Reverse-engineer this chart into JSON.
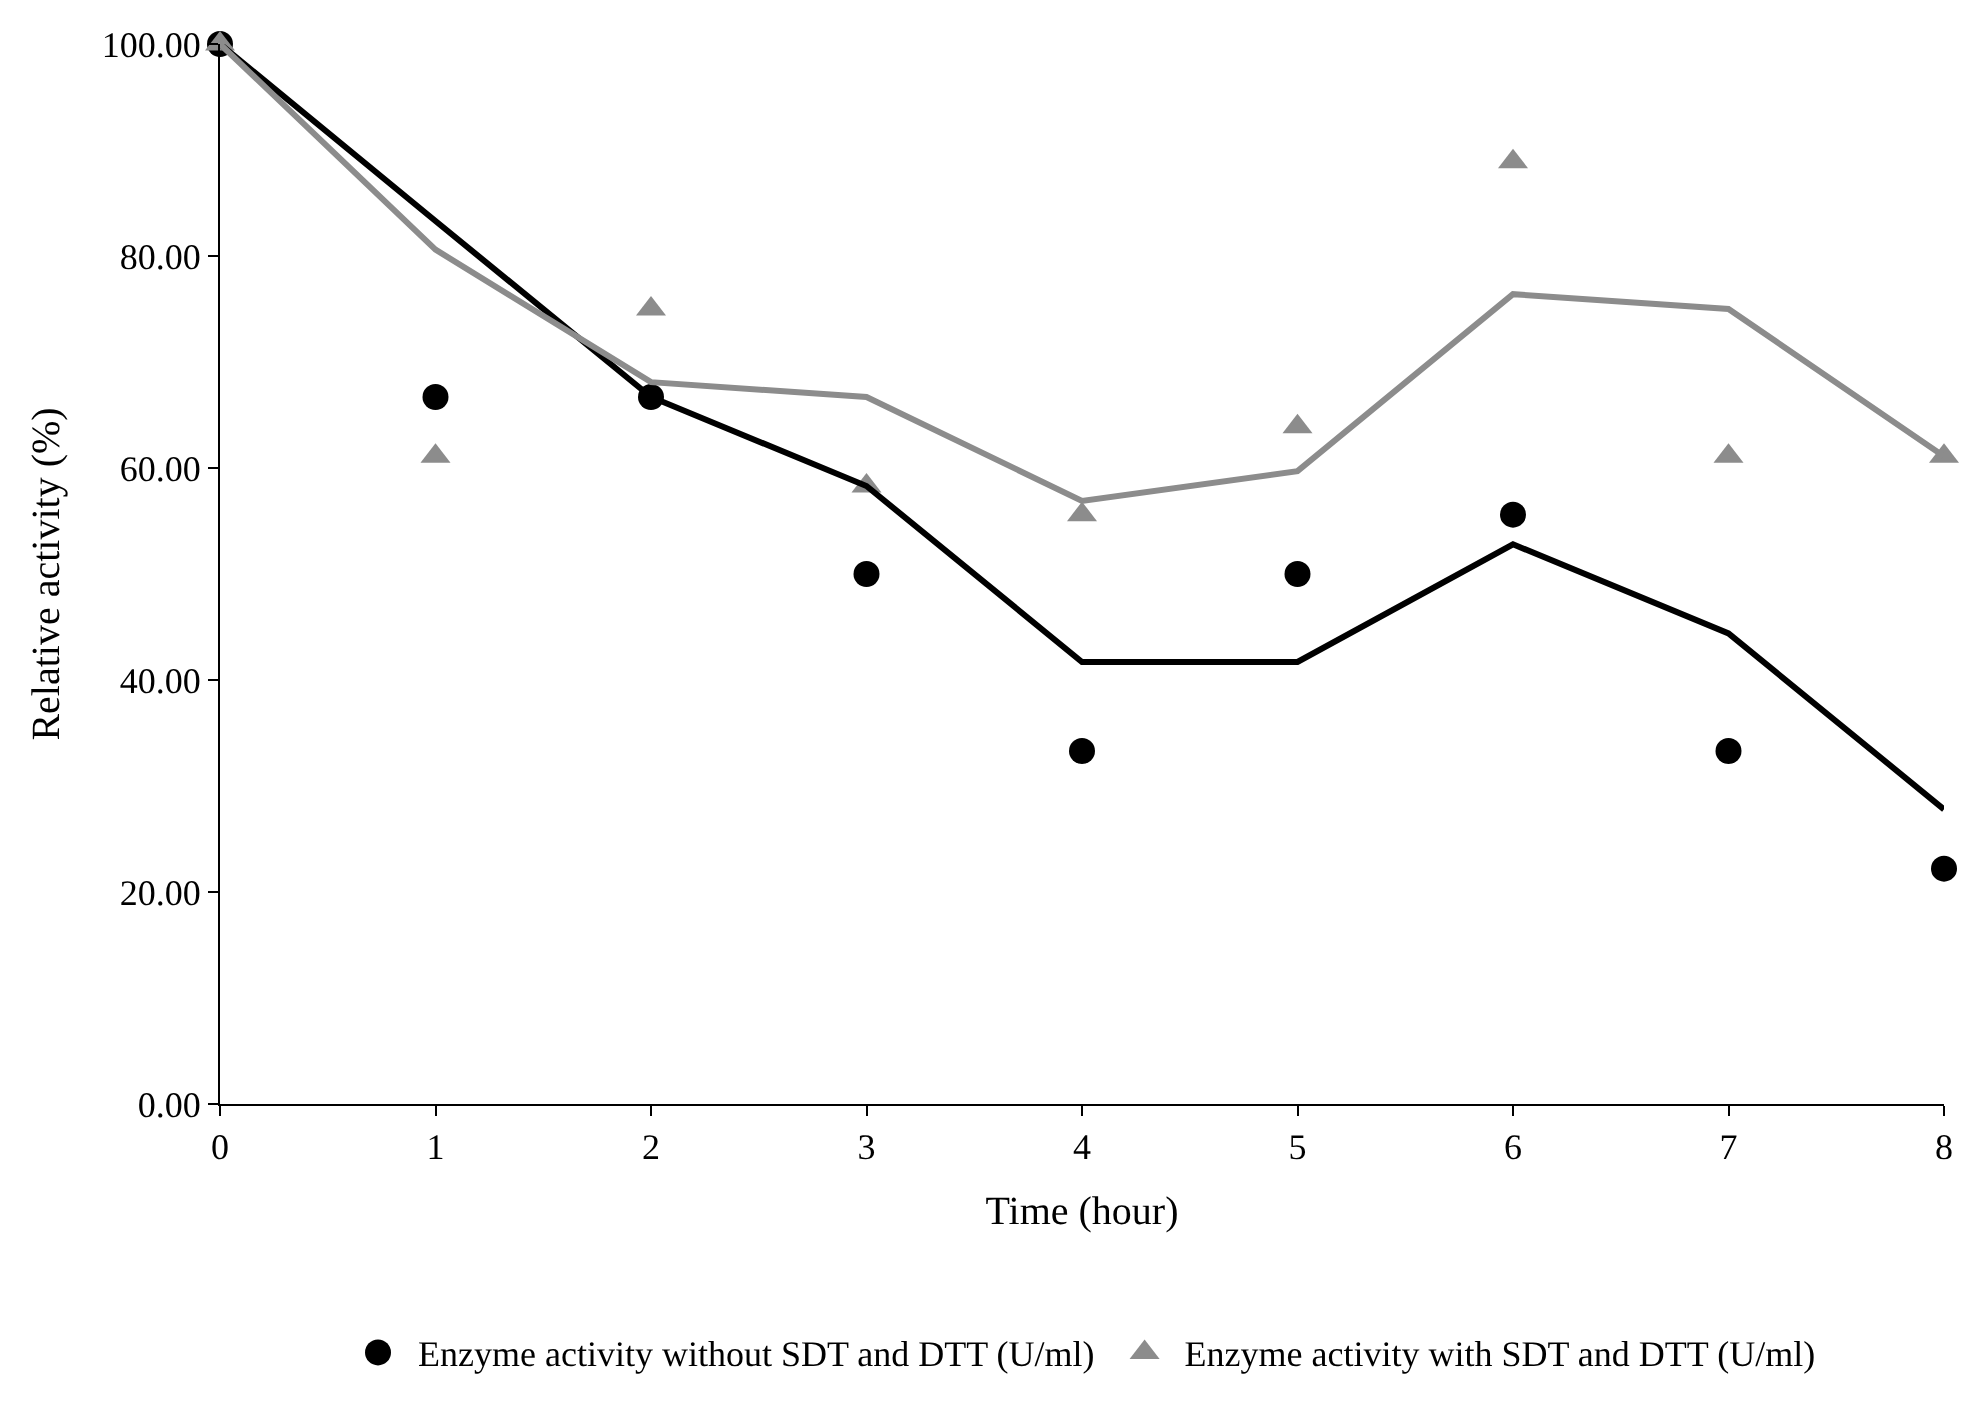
{
  "chart_data": {
    "type": "scatter",
    "xlabel": "Time (hour)",
    "ylabel": "Relative activity (%)",
    "x": [
      0,
      1,
      2,
      3,
      4,
      5,
      6,
      7,
      8
    ],
    "series": [
      {
        "name": "Enzyme activity without SDT and DTT (U/ml)",
        "color": "#000000",
        "marker": "circle",
        "values": [
          100,
          66.7,
          66.7,
          50,
          33.3,
          50,
          55.6,
          33.3,
          22.2
        ]
      },
      {
        "name": "Enzyme activity with SDT and DTT (U/ml)",
        "color": "#8c8c8c",
        "marker": "triangle",
        "values": [
          100,
          61.1,
          75,
          58.3,
          55.6,
          63.9,
          88.9,
          61.1,
          61.1
        ]
      },
      {
        "type": "line",
        "color": "#000000",
        "x": [
          0,
          1,
          2,
          3,
          4,
          5,
          6,
          7,
          8
        ],
        "values": [
          100,
          83.3,
          66.7,
          58.3,
          41.7,
          41.7,
          52.8,
          44.4,
          27.8
        ]
      },
      {
        "type": "line",
        "color": "#8c8c8c",
        "x": [
          0,
          1,
          2,
          3,
          4,
          5,
          6,
          7,
          8
        ],
        "values": [
          100,
          80.6,
          68.1,
          66.7,
          56.9,
          59.7,
          76.4,
          75,
          61.1
        ]
      }
    ],
    "xlim": [
      0,
      8
    ],
    "xticks": [
      0,
      1,
      2,
      3,
      4,
      5,
      6,
      7,
      8
    ],
    "ylim": [
      0,
      100
    ],
    "yticks": [
      {
        "value": 0,
        "label": "0.00"
      },
      {
        "value": 20,
        "label": "20.00"
      },
      {
        "value": 40,
        "label": "40.00"
      },
      {
        "value": 60,
        "label": "60.00"
      },
      {
        "value": 80,
        "label": "80.00"
      },
      {
        "value": 100,
        "label": "100.00"
      }
    ],
    "legend": "bottom"
  }
}
